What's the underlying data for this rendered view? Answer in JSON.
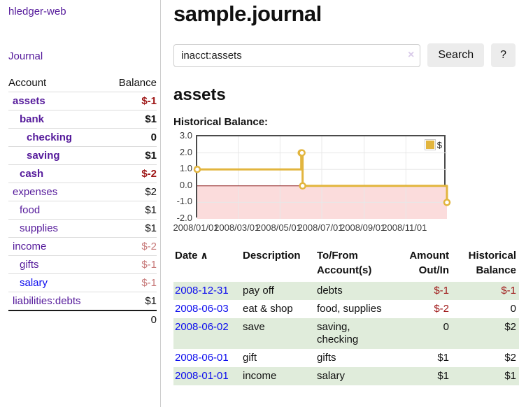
{
  "sidebar": {
    "brand": "hledger-web",
    "journal_link": "Journal",
    "accounts_table": {
      "headers": {
        "account": "Account",
        "balance": "Balance"
      },
      "rows": [
        {
          "account": "assets",
          "indent": 0,
          "bold": true,
          "balance": "$-1",
          "balance_style": "negstrong",
          "link_color": "purple"
        },
        {
          "account": "bank",
          "indent": 1,
          "bold": true,
          "balance": "$1",
          "balance_style": "normal",
          "link_color": "purple"
        },
        {
          "account": "checking",
          "indent": 2,
          "bold": true,
          "balance": "0",
          "balance_style": "normal",
          "link_color": "purple"
        },
        {
          "account": "saving",
          "indent": 2,
          "bold": true,
          "balance": "$1",
          "balance_style": "normal",
          "link_color": "purple"
        },
        {
          "account": "cash",
          "indent": 1,
          "bold": true,
          "balance": "$-2",
          "balance_style": "negstrong",
          "link_color": "purple"
        },
        {
          "account": "expenses",
          "indent": 0,
          "bold": false,
          "balance": "$2",
          "balance_style": "normal",
          "link_color": "purple"
        },
        {
          "account": "food",
          "indent": 1,
          "bold": false,
          "balance": "$1",
          "balance_style": "normal",
          "link_color": "purple"
        },
        {
          "account": "supplies",
          "indent": 1,
          "bold": false,
          "balance": "$1",
          "balance_style": "normal",
          "link_color": "purple"
        },
        {
          "account": "income",
          "indent": 0,
          "bold": false,
          "balance": "$-2",
          "balance_style": "negsoft",
          "link_color": "purple"
        },
        {
          "account": "gifts",
          "indent": 1,
          "bold": false,
          "balance": "$-1",
          "balance_style": "negsoft",
          "link_color": "purple"
        },
        {
          "account": "salary",
          "indent": 1,
          "bold": false,
          "balance": "$-1",
          "balance_style": "negsoft",
          "link_color": "blue"
        },
        {
          "account": "liabilities:debts",
          "indent": 0,
          "bold": false,
          "balance": "$1",
          "balance_style": "normal",
          "link_color": "purple"
        }
      ],
      "total": "0"
    }
  },
  "header": {
    "title": "sample.journal"
  },
  "search": {
    "value": "inacct:assets",
    "clear_icon": "×",
    "button_label": "Search",
    "help_label": "?"
  },
  "account_page": {
    "heading": "assets",
    "chart_label": "Historical Balance:"
  },
  "chart_data": {
    "type": "line",
    "title": "Historical Balance",
    "steps": true,
    "series": [
      {
        "name": "$",
        "color": "#e2b53e",
        "points": [
          {
            "date": "2008-01-01",
            "value": 1
          },
          {
            "date": "2008-06-01",
            "value": 2
          },
          {
            "date": "2008-06-02",
            "value": 2
          },
          {
            "date": "2008-06-03",
            "value": 0
          },
          {
            "date": "2008-12-31",
            "value": -1
          }
        ]
      }
    ],
    "x_range": [
      "2008-01-01",
      "2008-12-31"
    ],
    "ylim": [
      -2,
      3
    ],
    "x_ticks": [
      {
        "date": "2008-01-01",
        "label": "2008/01/01"
      },
      {
        "date": "2008-03-01",
        "label": "2008/03/01"
      },
      {
        "date": "2008-05-01",
        "label": "2008/05/01"
      },
      {
        "date": "2008-07-01",
        "label": "2008/07/01"
      },
      {
        "date": "2008-09-01",
        "label": "2008/09/01"
      },
      {
        "date": "2008-11-01",
        "label": "2008/11/01"
      }
    ],
    "y_ticks": [
      {
        "value": 3,
        "label": "3.0"
      },
      {
        "value": 2,
        "label": "2.0"
      },
      {
        "value": 1,
        "label": "1.0"
      },
      {
        "value": 0,
        "label": "0.0"
      },
      {
        "value": -1,
        "label": "-1.0"
      },
      {
        "value": -2,
        "label": "-2.0"
      }
    ],
    "legend": {
      "position": "top-right",
      "entries": [
        {
          "label": "$",
          "color": "#e2b53e"
        }
      ]
    },
    "grid": true,
    "negative_region_color": "#fbdcdc",
    "zero_line_color": "#8b1a1a",
    "gridline_color": "#e8e8e8"
  },
  "transactions": {
    "sort_icon": "∧",
    "columns": [
      {
        "lines": [
          "Date"
        ],
        "align": "left",
        "sortable": true
      },
      {
        "lines": [
          "Description"
        ],
        "align": "left"
      },
      {
        "lines": [
          "To/From",
          "Account(s)"
        ],
        "align": "left"
      },
      {
        "lines": [
          "Amount",
          "Out/In"
        ],
        "align": "right"
      },
      {
        "lines": [
          "Historical",
          "Balance"
        ],
        "align": "right"
      }
    ],
    "rows": [
      {
        "date": "2008-12-31",
        "description": "pay off",
        "accounts": "debts",
        "amount": "$-1",
        "balance": "$-1"
      },
      {
        "date": "2008-06-03",
        "description": "eat & shop",
        "accounts": "food, supplies",
        "amount": "$-2",
        "balance": "0"
      },
      {
        "date": "2008-06-02",
        "description": "save",
        "accounts": "saving, checking",
        "amount": "0",
        "balance": "$2"
      },
      {
        "date": "2008-06-01",
        "description": "gift",
        "accounts": "gifts",
        "amount": "$1",
        "balance": "$2"
      },
      {
        "date": "2008-01-01",
        "description": "income",
        "accounts": "salary",
        "amount": "$1",
        "balance": "$1"
      }
    ]
  },
  "colors": {
    "link_purple": "#551a9b",
    "link_blue": "#0d0dee",
    "negative_strong": "#9e1616",
    "negative_soft": "#c77979",
    "row_green": "#e0ecdb",
    "chart_gold": "#e2b53e"
  }
}
